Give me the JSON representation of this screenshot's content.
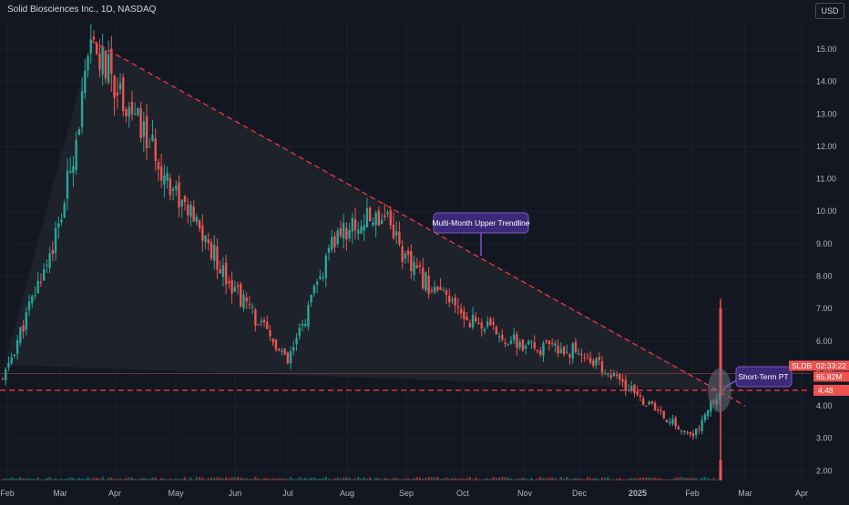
{
  "header": {
    "symbol_title": "Solid Biosciences Inc., 1D, NASDAQ",
    "currency_button": "USD"
  },
  "colors": {
    "background": "#131722",
    "up": "#26a69a",
    "down": "#ef5350",
    "grid": "#1c202b",
    "axis_text": "#b2b5be",
    "trendline": "#f23645",
    "callout_fill": "#3a2a78",
    "callout_border": "#7e57c2",
    "triangle_fill": "#20232b"
  },
  "chart_data": {
    "type": "candlestick",
    "title": "Solid Biosciences Inc., 1D, NASDAQ",
    "y_axis": {
      "ticks": [
        "15.00",
        "14.00",
        "13.00",
        "12.00",
        "11.00",
        "10.00",
        "9.00",
        "8.00",
        "7.00",
        "6.00",
        "5.00",
        "4.00",
        "3.00",
        "2.00"
      ],
      "min": 1.7,
      "max": 15.9
    },
    "x_axis": {
      "ticks": [
        "Feb",
        "Mar",
        "Apr",
        "May",
        "Jun",
        "Jul",
        "Aug",
        "Sep",
        "Oct",
        "Nov",
        "Dec",
        "2025",
        "Feb",
        "Mar",
        "Apr"
      ]
    },
    "ohlc_anchors": [
      {
        "date": "Feb",
        "close": 4.7
      },
      {
        "date": "Mar",
        "close": 9.6
      },
      {
        "date": "Mar 20",
        "close": 15.1
      },
      {
        "date": "Apr",
        "close": 14.0
      },
      {
        "date": "May",
        "close": 10.6
      },
      {
        "date": "Jun",
        "close": 7.6
      },
      {
        "date": "Jul",
        "close": 5.3
      },
      {
        "date": "Aug",
        "close": 9.3
      },
      {
        "date": "Aug 25",
        "close": 10.0
      },
      {
        "date": "Sep",
        "close": 8.4
      },
      {
        "date": "Oct",
        "close": 6.8
      },
      {
        "date": "Nov",
        "close": 5.8
      },
      {
        "date": "Dec",
        "close": 5.7
      },
      {
        "date": "2025",
        "close": 4.3
      },
      {
        "date": "Feb",
        "close": 3.0
      },
      {
        "date": "Feb 20",
        "close": 4.48
      }
    ],
    "annotations": {
      "upper_trendline_label": "Multi-Month Upper Trendline",
      "target_label": "Short-Term PT",
      "target_level": 4.48,
      "target_level_text": "4.48"
    },
    "price_label": {
      "symbol": "SLDB",
      "countdown": "02:33:22",
      "volume": "65.82M",
      "level": 5.0
    }
  }
}
